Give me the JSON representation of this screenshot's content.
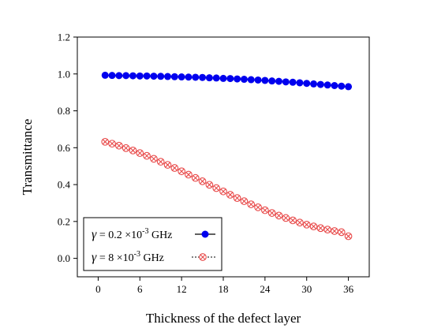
{
  "chart_data": {
    "type": "scatter",
    "xlabel": "Thickness of the defect layer",
    "ylabel": "Transmittance",
    "xlim": [
      -3,
      39
    ],
    "ylim": [
      -0.1,
      1.2
    ],
    "xticks": [
      0,
      6,
      12,
      18,
      24,
      30,
      36
    ],
    "yticks": [
      0.0,
      0.2,
      0.4,
      0.6,
      0.8,
      1.0,
      1.2
    ],
    "x_tick_labels": [
      "0",
      "6",
      "12",
      "18",
      "24",
      "30",
      "36"
    ],
    "y_tick_labels": [
      "0.0",
      "0.2",
      "0.4",
      "0.6",
      "0.8",
      "1.0",
      "1.2"
    ],
    "grid": false,
    "legend_position": "bottom-left",
    "x": [
      1,
      2,
      3,
      4,
      5,
      6,
      7,
      8,
      9,
      10,
      11,
      12,
      13,
      14,
      15,
      16,
      17,
      18,
      19,
      20,
      21,
      22,
      23,
      24,
      25,
      26,
      27,
      28,
      29,
      30,
      31,
      32,
      33,
      34,
      35,
      36
    ],
    "series": [
      {
        "legend_prefix": "γ",
        "legend_mid": " = 0.2 ×10",
        "legend_sup": "-3",
        "legend_suffix": " GHz",
        "color": "#0000ee",
        "marker": "filled-circle",
        "line": "solid",
        "values": [
          0.993,
          0.992,
          0.991,
          0.991,
          0.99,
          0.989,
          0.989,
          0.988,
          0.987,
          0.986,
          0.985,
          0.984,
          0.983,
          0.982,
          0.981,
          0.979,
          0.978,
          0.976,
          0.975,
          0.973,
          0.971,
          0.969,
          0.967,
          0.965,
          0.962,
          0.96,
          0.957,
          0.955,
          0.952,
          0.949,
          0.946,
          0.943,
          0.94,
          0.937,
          0.934,
          0.931
        ]
      },
      {
        "legend_prefix": "γ",
        "legend_mid": " = 8 ×10",
        "legend_sup": "-3",
        "legend_suffix": " GHz",
        "color": "#e84a4a",
        "marker": "crossed-circle",
        "line": "dotted",
        "values": [
          0.632,
          0.622,
          0.611,
          0.598,
          0.585,
          0.571,
          0.556,
          0.54,
          0.524,
          0.507,
          0.49,
          0.472,
          0.454,
          0.436,
          0.418,
          0.399,
          0.381,
          0.363,
          0.345,
          0.327,
          0.31,
          0.293,
          0.277,
          0.261,
          0.246,
          0.232,
          0.219,
          0.206,
          0.194,
          0.183,
          0.173,
          0.164,
          0.156,
          0.148,
          0.142,
          0.12
        ]
      }
    ]
  }
}
